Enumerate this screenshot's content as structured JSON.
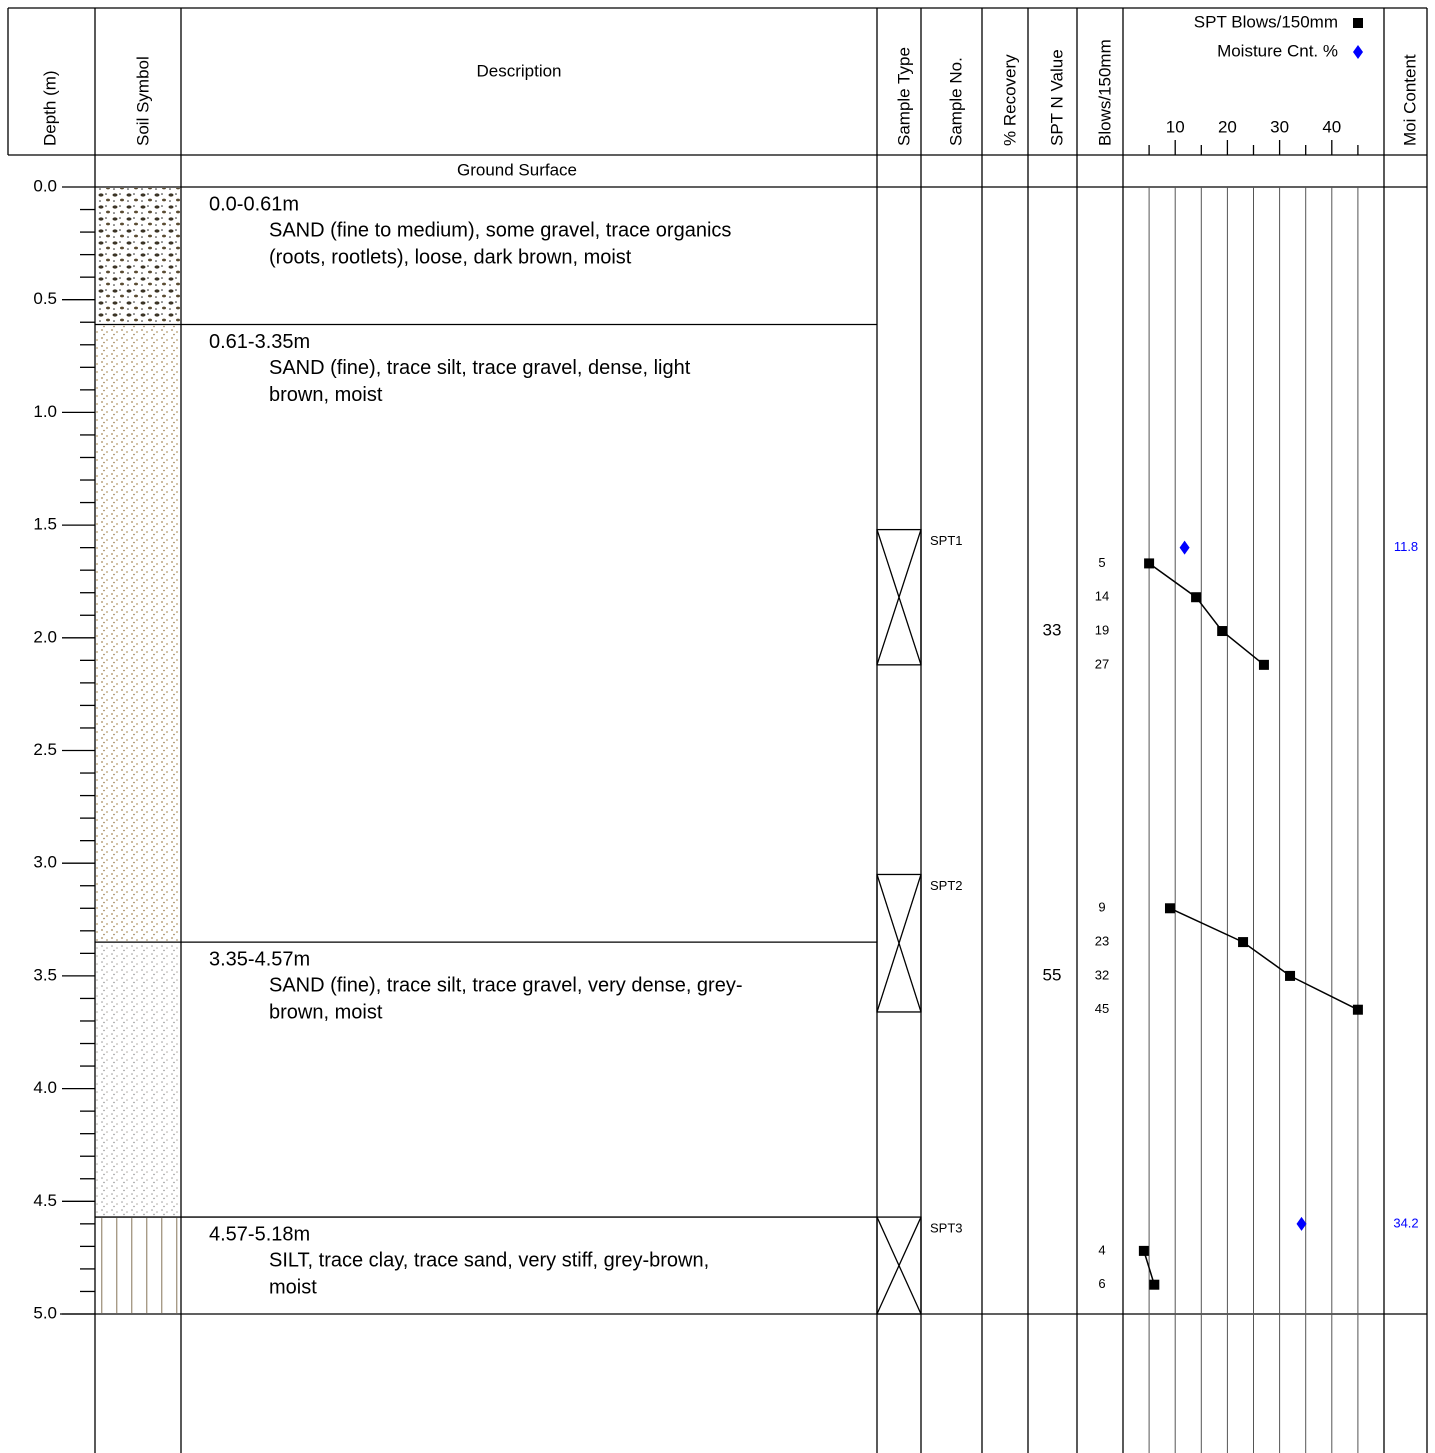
{
  "headers": {
    "depth": "Depth (m)",
    "soil_symbol": "Soil Symbol",
    "description": "Description",
    "sample_type": "Sample Type",
    "sample_no": "Sample No.",
    "recovery": "% Recovery",
    "spt_n": "SPT N Value",
    "blows": "Blows/150mm",
    "moisture_content": "Moi Content"
  },
  "ground_surface": "Ground Surface",
  "depth_axis": {
    "lim": [
      0,
      5
    ],
    "ticks": [
      {
        "value": 0,
        "label": "0.0"
      },
      {
        "value": 0.5,
        "label": "0.5"
      },
      {
        "value": 1,
        "label": "1.0"
      },
      {
        "value": 1.5,
        "label": "1.5"
      },
      {
        "value": 2,
        "label": "2.0"
      },
      {
        "value": 2.5,
        "label": "2.5"
      },
      {
        "value": 3,
        "label": "3.0"
      },
      {
        "value": 3.5,
        "label": "3.5"
      },
      {
        "value": 4,
        "label": "4.0"
      },
      {
        "value": 4.5,
        "label": "4.5"
      },
      {
        "value": 5,
        "label": "5.0"
      }
    ]
  },
  "layers": [
    {
      "range": "0.0-0.61m",
      "top": 0,
      "bottom": 0.61,
      "description": [
        "SAND (fine to medium), some gravel, trace organics",
        "(roots, rootlets), loose, dark brown, moist"
      ]
    },
    {
      "range": "0.61-3.35m",
      "top": 0.61,
      "bottom": 3.35,
      "description": [
        "SAND (fine), trace silt, trace gravel, dense, light",
        "brown, moist"
      ]
    },
    {
      "range": "3.35-4.57m",
      "top": 3.35,
      "bottom": 4.57,
      "description": [
        "SAND (fine), trace silt, trace gravel, very dense, grey-",
        "brown, moist"
      ]
    },
    {
      "range": "4.57-5.18m",
      "top": 4.57,
      "bottom": 5.18,
      "description": [
        "SILT, trace clay, trace sand, very stiff, grey-brown,",
        "moist"
      ]
    }
  ],
  "samples": [
    {
      "label": "SPT1",
      "top": 1.52,
      "bottom": 2.12,
      "n_value": 33,
      "blows": [
        5,
        14,
        19,
        27
      ],
      "blow_depths": [
        1.67,
        1.82,
        1.97,
        2.12
      ]
    },
    {
      "label": "SPT2",
      "top": 3.05,
      "bottom": 3.66,
      "n_value": 55,
      "blows": [
        9,
        23,
        32,
        45
      ],
      "blow_depths": [
        3.2,
        3.35,
        3.5,
        3.65
      ]
    },
    {
      "label": "SPT3",
      "top": 4.57,
      "bottom": 5.18,
      "blows": [
        4,
        6
      ],
      "blow_depths": [
        4.72,
        4.87
      ]
    }
  ],
  "moisture": [
    {
      "depth": 1.6,
      "value": 11.8
    },
    {
      "depth": 4.6,
      "value": 34.2
    }
  ],
  "plot": {
    "xlim": [
      0,
      50
    ],
    "xticks": [
      10,
      20,
      30,
      40
    ],
    "blows_series": {
      "name": "SPT Blows/150mm",
      "color": "#000000"
    },
    "moisture_series": {
      "name": "Moisture Cnt. %",
      "color": "#0000ff"
    }
  }
}
